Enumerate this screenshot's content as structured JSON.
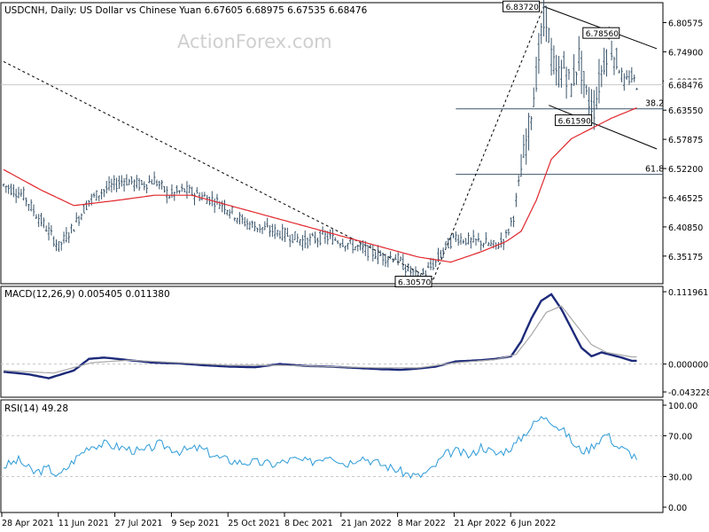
{
  "header": {
    "title": "USDCNH, Daily:  US Dollar vs Chinese Yuan  6.67605 6.68975 6.67535 6.68476",
    "watermark": "ActionForex.com"
  },
  "colors": {
    "candle": "#3a556b",
    "ma": "#e0262c",
    "macd_hist": "#1d2a7a",
    "macd_signal": "#a8a8a8",
    "rsi": "#2b9ad8",
    "levels": "#3a556b",
    "trendline": "#000000",
    "frame": "#000000",
    "grid": "#c8c8c8"
  },
  "x_axis": {
    "tick_labels": [
      "28 Apr 2021",
      "11 Jun 2021",
      "27 Jul 2021",
      "9 Sep 2021",
      "25 Oct 2021",
      "8 Dec 2021",
      "21 Jan 2022",
      "8 Mar 2022",
      "21 Apr 2022",
      "6 Jun 2022"
    ]
  },
  "chart_data": [
    {
      "type": "candlestick",
      "title": "USDCNH, Daily:  US Dollar vs Chinese Yuan",
      "ohlc_last": {
        "open": 6.67605,
        "high": 6.68975,
        "low": 6.67535,
        "close": 6.68476
      },
      "y_ticks": [
        "6.80575",
        "6.74900",
        "6.69225",
        "6.63550",
        "6.57875",
        "6.52200",
        "6.46525",
        "6.40850",
        "6.35175"
      ],
      "current_price_label": "6.68476",
      "ylim": [
        6.298,
        6.8445
      ],
      "close_path": [
        [
          0,
          6.49
        ],
        [
          8,
          6.47
        ],
        [
          12,
          6.44
        ],
        [
          18,
          6.4
        ],
        [
          22,
          6.37
        ],
        [
          28,
          6.41
        ],
        [
          34,
          6.46
        ],
        [
          40,
          6.48
        ],
        [
          48,
          6.5
        ],
        [
          55,
          6.49
        ],
        [
          60,
          6.5
        ],
        [
          66,
          6.47
        ],
        [
          72,
          6.48
        ],
        [
          78,
          6.47
        ],
        [
          84,
          6.46
        ],
        [
          88,
          6.45
        ],
        [
          95,
          6.42
        ],
        [
          100,
          6.41
        ],
        [
          108,
          6.4
        ],
        [
          115,
          6.39
        ],
        [
          120,
          6.38
        ],
        [
          128,
          6.39
        ],
        [
          135,
          6.38
        ],
        [
          140,
          6.37
        ],
        [
          146,
          6.36
        ],
        [
          152,
          6.35
        ],
        [
          156,
          6.35
        ],
        [
          160,
          6.33
        ],
        [
          165,
          6.31
        ],
        [
          168,
          6.32
        ],
        [
          172,
          6.34
        ],
        [
          176,
          6.37
        ],
        [
          180,
          6.39
        ],
        [
          186,
          6.38
        ],
        [
          190,
          6.38
        ],
        [
          196,
          6.37
        ],
        [
          200,
          6.39
        ],
        [
          203,
          6.43
        ],
        [
          206,
          6.52
        ],
        [
          209,
          6.6
        ],
        [
          212,
          6.7
        ],
        [
          214,
          6.78
        ],
        [
          216,
          6.82
        ],
        [
          218,
          6.74
        ],
        [
          220,
          6.7
        ],
        [
          223,
          6.72
        ],
        [
          226,
          6.68
        ],
        [
          229,
          6.74
        ],
        [
          232,
          6.66
        ],
        [
          235,
          6.64
        ],
        [
          238,
          6.71
        ],
        [
          241,
          6.77
        ],
        [
          244,
          6.73
        ],
        [
          247,
          6.69
        ],
        [
          250,
          6.7
        ],
        [
          252,
          6.685
        ]
      ],
      "ma_path": [
        [
          0,
          6.52
        ],
        [
          15,
          6.48
        ],
        [
          28,
          6.45
        ],
        [
          45,
          6.46
        ],
        [
          60,
          6.47
        ],
        [
          75,
          6.47
        ],
        [
          90,
          6.45
        ],
        [
          105,
          6.43
        ],
        [
          120,
          6.41
        ],
        [
          135,
          6.39
        ],
        [
          150,
          6.37
        ],
        [
          165,
          6.35
        ],
        [
          178,
          6.34
        ],
        [
          190,
          6.36
        ],
        [
          200,
          6.38
        ],
        [
          206,
          6.4
        ],
        [
          212,
          6.46
        ],
        [
          218,
          6.54
        ],
        [
          226,
          6.58
        ],
        [
          234,
          6.6
        ],
        [
          242,
          6.62
        ],
        [
          252,
          6.64
        ]
      ],
      "annotations": [
        {
          "label": "6.83720",
          "idx": 215,
          "value": 6.8372
        },
        {
          "label": "6.78560",
          "idx": 232,
          "value": 6.7856
        },
        {
          "label": "6.61590",
          "idx": 221,
          "value": 6.6159
        },
        {
          "label": "6.30570",
          "idx": 170,
          "value": 6.3057
        }
      ],
      "levels": [
        {
          "label": "38.2",
          "value": 6.6381,
          "from_idx": 180
        },
        {
          "label": "61.8",
          "value": 6.5106,
          "from_idx": 180
        }
      ],
      "trendlines": [
        {
          "from": [
            0,
            6.73
          ],
          "to": [
            171,
            6.306
          ],
          "style": "dashed"
        },
        {
          "from": [
            171,
            6.306
          ],
          "to": [
            215,
            6.837
          ],
          "style": "dashed"
        },
        {
          "from": [
            215,
            6.837
          ],
          "to": [
            260,
            6.755
          ],
          "style": "solid"
        },
        {
          "from": [
            217,
            6.645
          ],
          "to": [
            260,
            6.56
          ],
          "style": "solid"
        }
      ]
    },
    {
      "type": "line",
      "title": "MACD(12,26,9) 0.005405 0.011380",
      "y_ticks": [
        "0.111961",
        "0.000000",
        "-0.043228"
      ],
      "ylim": [
        -0.0432,
        0.112
      ],
      "zero_line": 0,
      "series": [
        {
          "name": "MACD",
          "points": [
            [
              0,
              -0.012
            ],
            [
              10,
              -0.016
            ],
            [
              18,
              -0.022
            ],
            [
              28,
              -0.01
            ],
            [
              34,
              0.008
            ],
            [
              40,
              0.01
            ],
            [
              50,
              0.006
            ],
            [
              60,
              0.002
            ],
            [
              70,
              0.001
            ],
            [
              80,
              -0.002
            ],
            [
              90,
              -0.004
            ],
            [
              100,
              -0.005
            ],
            [
              110,
              0.0
            ],
            [
              120,
              -0.003
            ],
            [
              130,
              -0.004
            ],
            [
              140,
              -0.006
            ],
            [
              150,
              -0.008
            ],
            [
              158,
              -0.009
            ],
            [
              165,
              -0.007
            ],
            [
              172,
              -0.004
            ],
            [
              180,
              0.004
            ],
            [
              190,
              0.006
            ],
            [
              196,
              0.008
            ],
            [
              202,
              0.012
            ],
            [
              206,
              0.035
            ],
            [
              210,
              0.07
            ],
            [
              214,
              0.098
            ],
            [
              218,
              0.108
            ],
            [
              222,
              0.085
            ],
            [
              226,
              0.055
            ],
            [
              230,
              0.025
            ],
            [
              234,
              0.012
            ],
            [
              238,
              0.018
            ],
            [
              242,
              0.014
            ],
            [
              246,
              0.01
            ],
            [
              250,
              0.005
            ]
          ]
        },
        {
          "name": "Signal",
          "points": [
            [
              0,
              -0.01
            ],
            [
              20,
              -0.014
            ],
            [
              35,
              0.002
            ],
            [
              50,
              0.006
            ],
            [
              70,
              0.002
            ],
            [
              90,
              -0.002
            ],
            [
              110,
              -0.002
            ],
            [
              130,
              -0.004
            ],
            [
              150,
              -0.006
            ],
            [
              165,
              -0.006
            ],
            [
              180,
              0.002
            ],
            [
              196,
              0.007
            ],
            [
              204,
              0.015
            ],
            [
              210,
              0.045
            ],
            [
              216,
              0.08
            ],
            [
              222,
              0.09
            ],
            [
              228,
              0.06
            ],
            [
              234,
              0.03
            ],
            [
              240,
              0.018
            ],
            [
              250,
              0.011
            ]
          ]
        }
      ]
    },
    {
      "type": "line",
      "title": "RSI(14) 49.28",
      "y_ticks": [
        "100.00",
        "70.00",
        "30.00",
        "0.00"
      ],
      "levels": [
        70,
        30
      ],
      "ylim": [
        0,
        100
      ],
      "series": [
        {
          "name": "RSI",
          "points": [
            [
              0,
              40
            ],
            [
              6,
              46
            ],
            [
              12,
              34
            ],
            [
              18,
              38
            ],
            [
              22,
              30
            ],
            [
              28,
              46
            ],
            [
              34,
              60
            ],
            [
              40,
              62
            ],
            [
              48,
              58
            ],
            [
              55,
              54
            ],
            [
              62,
              62
            ],
            [
              70,
              55
            ],
            [
              78,
              58
            ],
            [
              86,
              48
            ],
            [
              94,
              44
            ],
            [
              100,
              44
            ],
            [
              108,
              42
            ],
            [
              115,
              47
            ],
            [
              122,
              44
            ],
            [
              130,
              52
            ],
            [
              136,
              42
            ],
            [
              142,
              50
            ],
            [
              148,
              44
            ],
            [
              155,
              38
            ],
            [
              160,
              33
            ],
            [
              165,
              30
            ],
            [
              170,
              36
            ],
            [
              176,
              52
            ],
            [
              180,
              55
            ],
            [
              186,
              50
            ],
            [
              190,
              60
            ],
            [
              196,
              52
            ],
            [
              200,
              56
            ],
            [
              204,
              62
            ],
            [
              208,
              74
            ],
            [
              212,
              84
            ],
            [
              216,
              90
            ],
            [
              220,
              80
            ],
            [
              224,
              72
            ],
            [
              228,
              58
            ],
            [
              232,
              55
            ],
            [
              236,
              64
            ],
            [
              240,
              72
            ],
            [
              244,
              60
            ],
            [
              248,
              55
            ],
            [
              252,
              49
            ]
          ]
        }
      ]
    }
  ]
}
